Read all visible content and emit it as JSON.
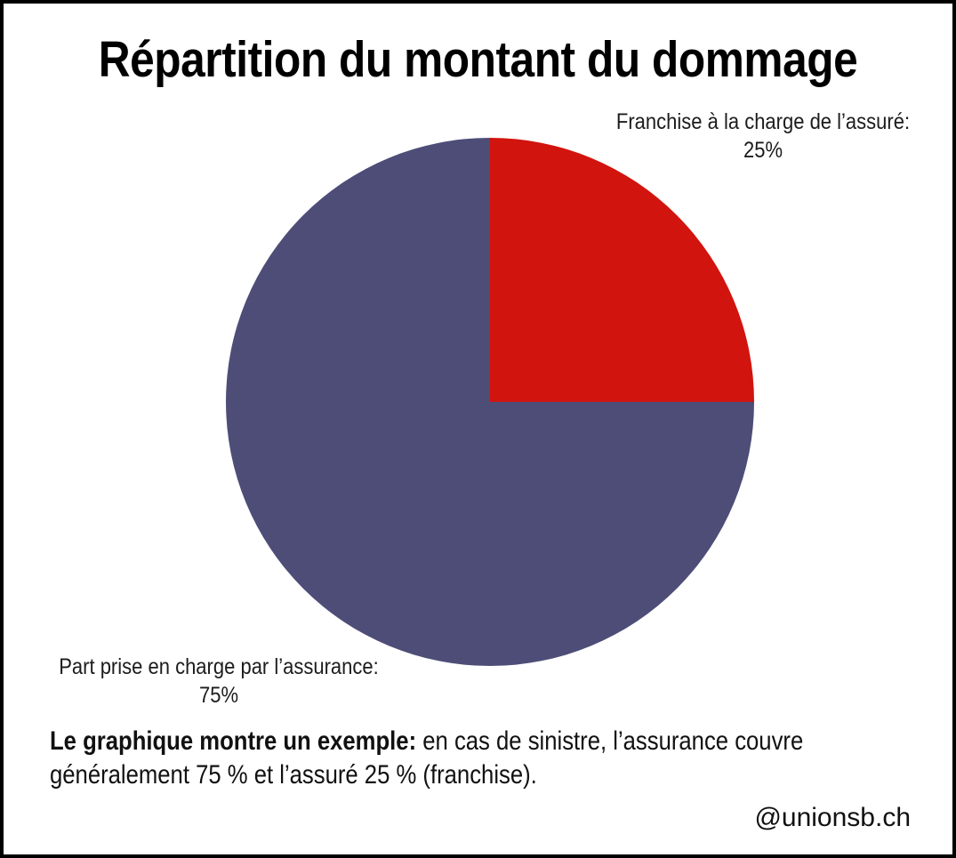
{
  "page": {
    "background_color": "#ffffff",
    "border_color": "#000000"
  },
  "title": "Répartition du montant du dommage",
  "chart_data": {
    "type": "pie",
    "title": "Répartition du montant du dommage",
    "start_angle_deg": 0,
    "direction": "clockwise",
    "legend_position": "labels-beside-slices",
    "slices": [
      {
        "name": "franchise",
        "label": "Franchise à la charge de l’assuré:",
        "value": 25,
        "value_text": "25%",
        "color": "#d2140e"
      },
      {
        "name": "assurance",
        "label": "Part prise en charge par l’assurance:",
        "value": 75,
        "value_text": "75%",
        "color": "#4d4d78"
      }
    ]
  },
  "footnote": {
    "line1_bold": "Le graphique montre un exemple:",
    "line1_rest": " en cas de sinistre, l’assurance couvre",
    "line2": "généralement 75 % et l’assuré 25 % (franchise)."
  },
  "watermark": "@unionsb.ch"
}
